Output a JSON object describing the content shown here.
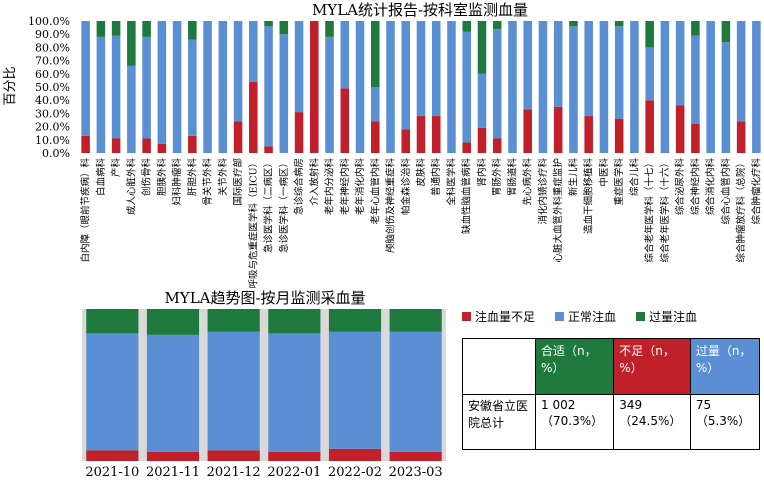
{
  "colors": {
    "under": "#c0202a",
    "normal": "#5b8fd4",
    "over": "#1e7a3c"
  },
  "top_chart": {
    "title": "MYLA统计报告-按科室监测血量",
    "ylabel": "百分比",
    "yticks": [
      "0.0%",
      "10.0%",
      "20.0%",
      "30.0%",
      "40.0%",
      "50.0%",
      "60.0%",
      "70.0%",
      "80.0%",
      "90.0%",
      "100.0%"
    ]
  },
  "trend_chart": {
    "title": "MYLA趋势图-按月监测采血量"
  },
  "legend": {
    "under": "注血量不足",
    "normal": "正常注血",
    "over": "过量注血"
  },
  "summary_table": {
    "headers": [
      "合适（n，%）",
      "不足（n，%）",
      "过量（n，%）"
    ],
    "row_label": "安徽省立医院总计",
    "values": [
      "1 002（70.3%）",
      "349（24.5%）",
      "75（5.3%）"
    ]
  },
  "chart_data": [
    {
      "type": "bar",
      "stacked": true,
      "title": "MYLA统计报告-按科室监测血量",
      "xlabel": "",
      "ylabel": "百分比",
      "ylim": [
        0,
        100
      ],
      "grid": false,
      "legend": "none",
      "categories": [
        "白内障（眼前节疾病）科",
        "白血病科",
        "产科",
        "成人心脏外科",
        "创伤骨科",
        "胆胰外科",
        "妇科肿瘤科",
        "肝胆外科",
        "骨关节外科",
        "关节外科",
        "国际医疗部",
        "呼吸与危重症医学科（EICU）",
        "急诊医学科（二病区）",
        "急诊医学科（一病区）",
        "急诊综合病房",
        "介入放射科",
        "老年内分泌科",
        "老年神经内科",
        "老年消化内科",
        "老年心血管内科",
        "颅脑创伤及神经重症科",
        "帕金森诊治科",
        "皮肤科",
        "普通内科",
        "全科医学科",
        "缺血性脑血管病科",
        "肾内科",
        "胃肠外科",
        "胃肠道科",
        "先心病外科",
        "消化内镜诊疗科",
        "心脏大血管外科重症监护",
        "新生儿科",
        "造血干细胞移植科",
        "中医科",
        "重症医学科",
        "综合儿科",
        "综合老年医学科（十七）",
        "综合老年医学科（十六）",
        "综合泌尿外科",
        "综合神经内科",
        "综合消化内科",
        "综合心血管内科",
        "综合肿瘤放疗科（总院）",
        "综合肿瘤化疗科"
      ],
      "series": [
        {
          "name": "注血量不足",
          "values": [
            13,
            0,
            11,
            0,
            11,
            7,
            0,
            13,
            0,
            0,
            24,
            54,
            5,
            0,
            31,
            100,
            0,
            49,
            0,
            24,
            0,
            18,
            28,
            28,
            0,
            8,
            19,
            11,
            0,
            33,
            0,
            35,
            0,
            28,
            0,
            26,
            0,
            40,
            0,
            36,
            22,
            0,
            0,
            24,
            0
          ]
        },
        {
          "name": "正常注血",
          "values": [
            87,
            88,
            78,
            66,
            77,
            93,
            100,
            73,
            100,
            100,
            76,
            46,
            91,
            90,
            69,
            0,
            88,
            51,
            100,
            26,
            100,
            82,
            72,
            72,
            100,
            84,
            41,
            83,
            100,
            67,
            100,
            65,
            96,
            72,
            100,
            70,
            100,
            40,
            100,
            64,
            67,
            100,
            84,
            76,
            100
          ]
        },
        {
          "name": "过量注血",
          "values": [
            0,
            12,
            11,
            34,
            12,
            0,
            0,
            14,
            0,
            0,
            0,
            0,
            4,
            10,
            0,
            0,
            12,
            0,
            0,
            50,
            0,
            0,
            0,
            0,
            0,
            8,
            40,
            6,
            0,
            0,
            0,
            0,
            4,
            0,
            0,
            4,
            0,
            20,
            0,
            0,
            11,
            0,
            16,
            0,
            0
          ]
        }
      ]
    },
    {
      "type": "bar",
      "stacked": true,
      "title": "MYLA趋势图-按月监测采血量",
      "categories": [
        "2021-10",
        "2021-11",
        "2021-12",
        "2022-01",
        "2022-02",
        "2023-03"
      ],
      "legend": "right",
      "series": [
        {
          "name": "注血量不足",
          "values": [
            7,
            6,
            7,
            6,
            8,
            6
          ]
        },
        {
          "name": "正常注血",
          "values": [
            77,
            77,
            78,
            78,
            77,
            79
          ]
        },
        {
          "name": "过量注血",
          "values": [
            16,
            17,
            15,
            16,
            15,
            15
          ]
        }
      ]
    }
  ]
}
